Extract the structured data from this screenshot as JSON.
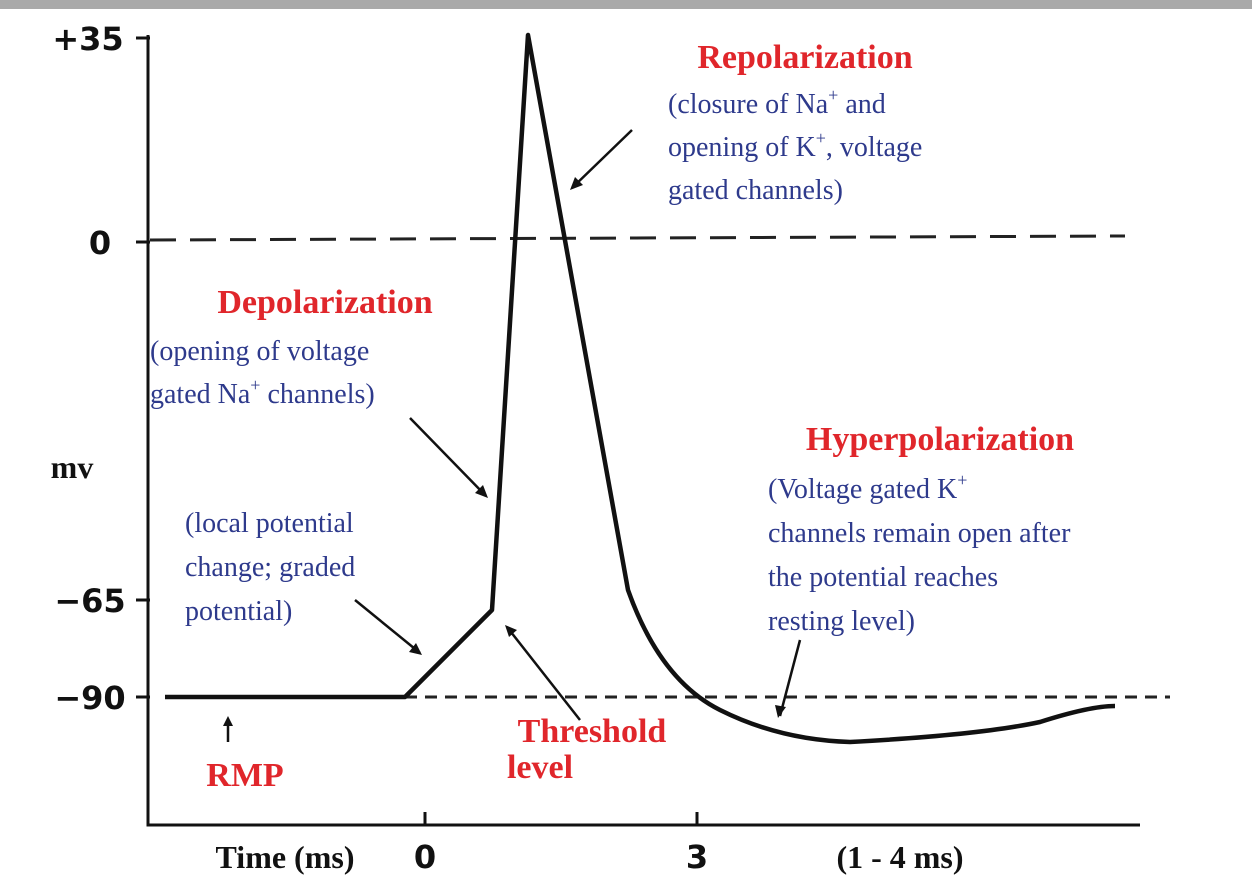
{
  "y_axis": {
    "title": "mv",
    "labels": [
      "+35",
      "0",
      "−65",
      "−90"
    ]
  },
  "x_axis": {
    "title": "Time (ms)",
    "labels": [
      "0",
      "3",
      "(1 - 4 ms)"
    ]
  },
  "repolarization": {
    "title": "Repolarization",
    "lines": [
      [
        "(closure of Na",
        "+",
        " and"
      ],
      [
        "opening of K",
        "+",
        ", voltage"
      ],
      [
        "gated channels)"
      ]
    ]
  },
  "depolarization": {
    "title": "Depolarization",
    "lines": [
      [
        "(opening of voltage"
      ],
      [
        "gated Na",
        "+",
        " channels)"
      ]
    ]
  },
  "graded": {
    "lines": [
      [
        "(local potential"
      ],
      [
        "change; graded"
      ],
      [
        "potential)"
      ]
    ]
  },
  "hyperpolarization": {
    "title": "Hyperpolarization",
    "lines": [
      [
        "(Voltage gated K",
        "+"
      ],
      [
        "channels remain open after"
      ],
      [
        "the potential reaches"
      ],
      [
        "resting level)"
      ]
    ]
  },
  "threshold": {
    "lines": [
      "Threshold",
      "level"
    ]
  },
  "rmp": "RMP"
}
